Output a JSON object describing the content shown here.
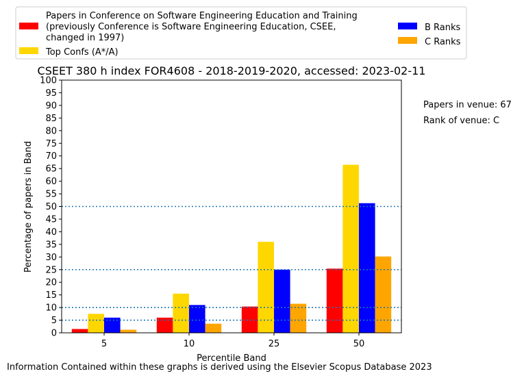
{
  "chart_data": {
    "type": "bar",
    "title": "CSEET 380 h index FOR4608 - 2018-2019-2020, accessed: 2023-02-11",
    "xlabel": "Percentile Band",
    "ylabel": "Percentage of papers in Band",
    "categories": [
      "5",
      "10",
      "25",
      "50"
    ],
    "ylim": [
      0,
      100
    ],
    "yticks": [
      0,
      5,
      10,
      15,
      20,
      25,
      30,
      35,
      40,
      45,
      50,
      55,
      60,
      65,
      70,
      75,
      80,
      85,
      90,
      95,
      100
    ],
    "series": [
      {
        "name": "Papers in Conference on Software Engineering Education and Training\n(previously Conference is Software Engineering Education, CSEE,\nchanged in 1997)",
        "color": "#ff0000",
        "values": [
          1.5,
          6.0,
          10.4,
          25.4
        ]
      },
      {
        "name": "Top Confs (A*/A)",
        "color": "#ffd700",
        "values": [
          7.5,
          15.5,
          36.0,
          66.5
        ]
      },
      {
        "name": "B Ranks",
        "color": "#0000ff",
        "values": [
          6.0,
          11.0,
          25.0,
          51.3
        ]
      },
      {
        "name": "C Ranks",
        "color": "#ffa500",
        "values": [
          1.2,
          3.6,
          11.5,
          30.2
        ]
      }
    ],
    "reference_lines": [
      5,
      10,
      25,
      50
    ],
    "reference_line_color": "#1f77b4",
    "legend_position": "top",
    "grid": false
  },
  "annotations": {
    "papers_in_venue": "Papers in venue: 67",
    "rank_of_venue": "Rank of venue: C"
  },
  "footer": "Information Contained within these graphs is derived using the Elsevier Scopus Database 2023"
}
